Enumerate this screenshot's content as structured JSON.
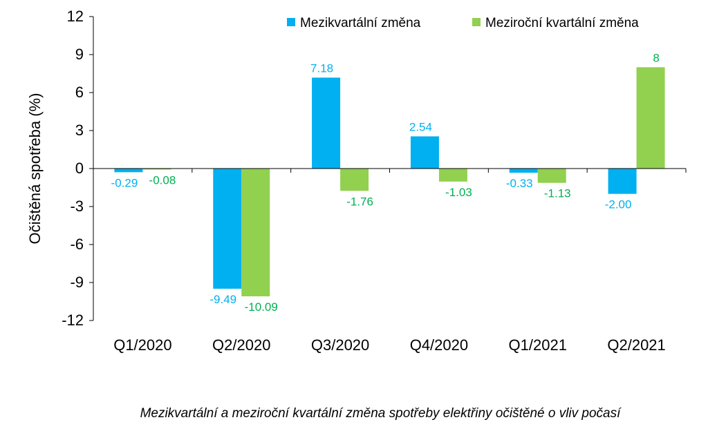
{
  "chart_data": {
    "type": "bar",
    "categories": [
      "Q1/2020",
      "Q2/2020",
      "Q3/2020",
      "Q4/2020",
      "Q1/2021",
      "Q2/2021"
    ],
    "series": [
      {
        "name": "Mezikvartální změna",
        "color": "#00B0F0",
        "label_color": "#00B0F0",
        "values": [
          -0.29,
          -9.49,
          7.18,
          2.54,
          -0.33,
          -2.0
        ],
        "labels": [
          "-0.29",
          "-9.49",
          "7.18",
          "2.54",
          "-0.33",
          "-2.00"
        ]
      },
      {
        "name": "Meziroční kvartální změna",
        "color": "#92D050",
        "label_color": "#00B050",
        "values": [
          -0.08,
          -10.09,
          -1.76,
          -1.03,
          -1.13,
          8
        ],
        "labels": [
          "-0.08",
          "-10.09",
          "-1.76",
          "-1.03",
          "-1.13",
          "8"
        ]
      }
    ],
    "title": "",
    "xlabel": "",
    "ylabel": "Očištěná spotřeba (%)",
    "ylim": [
      -12,
      12
    ],
    "yticks": [
      12,
      9,
      6,
      3,
      0,
      -3,
      -6,
      -9,
      -12
    ],
    "grid": false,
    "legend_position": "top-right"
  },
  "caption": "Mezikvartální a meziroční kvartální změna spotřeby elektřiny očištěné o vliv počasí"
}
